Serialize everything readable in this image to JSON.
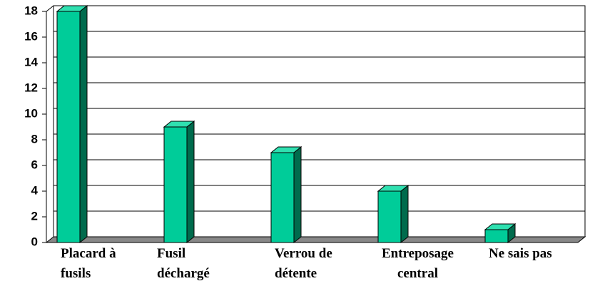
{
  "chart_data": {
    "type": "bar3d",
    "categories": [
      "Placard à\nfusils",
      "Fusil\ndéchargé",
      "Verrou de\ndétente",
      "Entreposage\ncentral",
      "Ne sais pas"
    ],
    "values": [
      18,
      9,
      7,
      4,
      1
    ],
    "color": "#00cc99",
    "ylim": [
      0,
      18
    ],
    "yticks": [
      0,
      2,
      4,
      6,
      8,
      10,
      12,
      14,
      16,
      18
    ],
    "grid": true
  }
}
